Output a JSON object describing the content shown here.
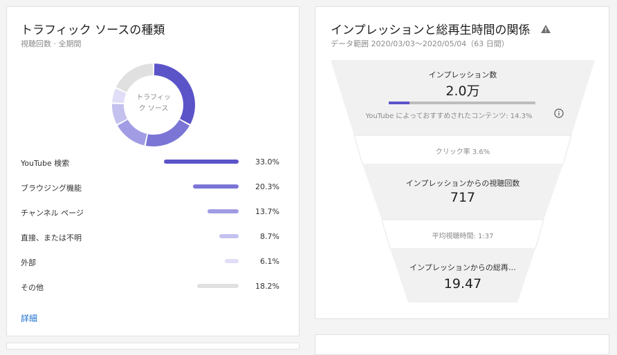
{
  "traffic": {
    "title": "トラフィック ソースの種類",
    "subtitle": "視聴回数 · 全期間",
    "donut_center": [
      "トラフィッ",
      "ク ソース"
    ],
    "sources": [
      {
        "label": "YouTube 検索",
        "percent": 33.0,
        "percent_label": "33.0%",
        "color": "#5b54c9"
      },
      {
        "label": "ブラウジング機能",
        "percent": 20.3,
        "percent_label": "20.3%",
        "color": "#7b75d6"
      },
      {
        "label": "チャンネル ページ",
        "percent": 13.7,
        "percent_label": "13.7%",
        "color": "#a19ce3"
      },
      {
        "label": "直接、または不明",
        "percent": 8.7,
        "percent_label": "8.7%",
        "color": "#c4c1ee"
      },
      {
        "label": "外部",
        "percent": 6.1,
        "percent_label": "6.1%",
        "color": "#e0def6"
      },
      {
        "label": "その他",
        "percent": 18.2,
        "percent_label": "18.2%",
        "color": "#e0e0e0"
      }
    ],
    "details_link": "詳細"
  },
  "funnel": {
    "title": "インプレッションと総再生時間の関係",
    "subtitle": "データ範囲 2020/03/03〜2020/05/04（63 日間）",
    "impressions_label": "インプレッション数",
    "impressions_value": "2.0万",
    "recommended_fraction": 0.143,
    "recommended_label": "YouTube によっておすすめされたコンテンツ: 14.3%",
    "ctr_label": "クリック率 3.6%",
    "views_label": "インプレッションからの視聴回数",
    "views_value": "717",
    "avg_label": "平均視聴時間: 1:37",
    "watch_label": "インプレッションからの総再…",
    "watch_value": "19.47"
  }
}
